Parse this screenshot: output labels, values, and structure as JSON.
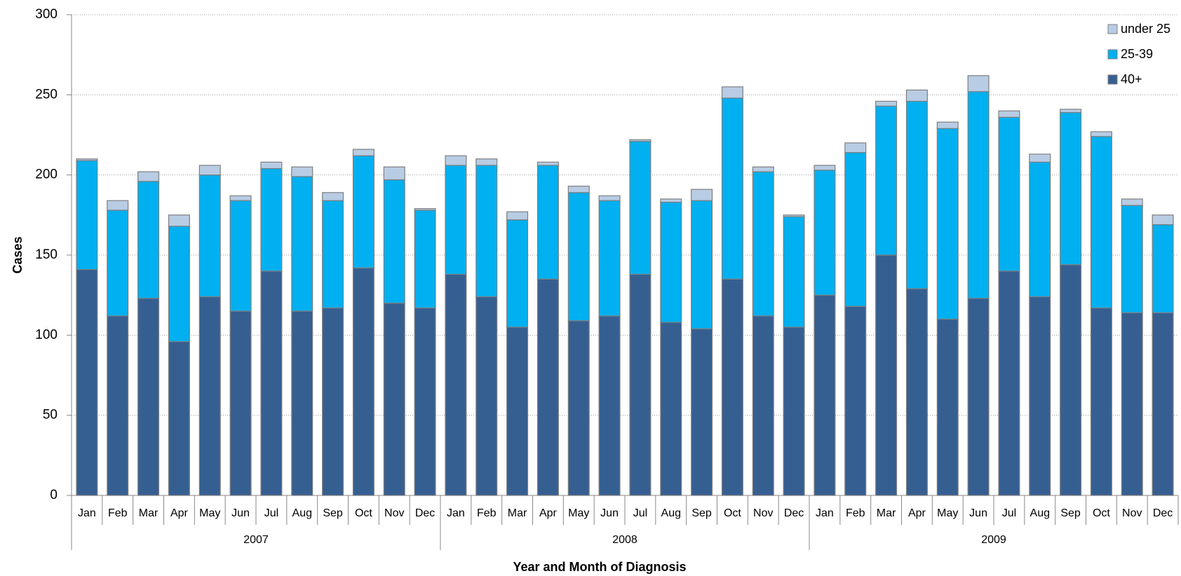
{
  "chart_data": {
    "type": "stacked_bar",
    "x_label": "Year and Month of Diagnosis",
    "y_label": "Cases",
    "categories": [
      "Jan",
      "Feb",
      "Mar",
      "Apr",
      "May",
      "Jun",
      "Jul",
      "Aug",
      "Sep",
      "Oct",
      "Nov",
      "Dec",
      "Jan",
      "Feb",
      "Mar",
      "Apr",
      "May",
      "Jun",
      "Jul",
      "Aug",
      "Sep",
      "Oct",
      "Nov",
      "Dec",
      "Jan",
      "Feb",
      "Mar",
      "Apr",
      "May",
      "Jun",
      "Jul",
      "Aug",
      "Sep",
      "Oct",
      "Nov",
      "Dec"
    ],
    "category_groups": [
      "2007",
      "2008",
      "2009"
    ],
    "series": [
      {
        "name": "40+",
        "color": "#365f91",
        "values": [
          141,
          112,
          123,
          96,
          124,
          115,
          140,
          115,
          117,
          142,
          120,
          117,
          138,
          124,
          105,
          135,
          109,
          112,
          138,
          108,
          104,
          135,
          112,
          105,
          125,
          118,
          150,
          129,
          110,
          123,
          140,
          124,
          144,
          117,
          114,
          114
        ]
      },
      {
        "name": "25-39",
        "color": "#00b0f0",
        "values": [
          68,
          66,
          73,
          72,
          76,
          69,
          64,
          84,
          67,
          70,
          77,
          61,
          68,
          82,
          67,
          71,
          80,
          72,
          83,
          75,
          80,
          113,
          90,
          69,
          78,
          96,
          93,
          117,
          119,
          129,
          96,
          84,
          95,
          107,
          67,
          55
        ]
      },
      {
        "name": "under 25",
        "color": "#b8cce4",
        "values": [
          1,
          6,
          6,
          7,
          6,
          3,
          4,
          6,
          5,
          4,
          8,
          1,
          6,
          4,
          5,
          2,
          4,
          3,
          1,
          2,
          7,
          7,
          3,
          1,
          3,
          6,
          3,
          7,
          4,
          10,
          4,
          5,
          2,
          3,
          4,
          6
        ]
      }
    ],
    "ylim": [
      0,
      300
    ],
    "yticks": [
      0,
      50,
      100,
      150,
      200,
      250,
      300
    ],
    "grid": true,
    "legend": "top-right"
  }
}
